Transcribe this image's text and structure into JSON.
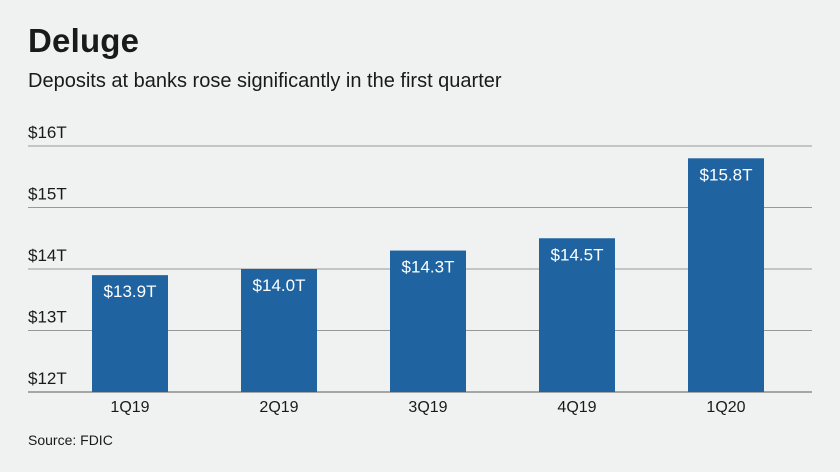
{
  "header": {
    "title": "Deluge",
    "subtitle": "Deposits at banks rose significantly in the first quarter"
  },
  "footer": {
    "source": "Source: FDIC"
  },
  "colors": {
    "bar": "#1f64a0",
    "grid": "#7a7a7a",
    "background": "#f0f2f2",
    "label_inside": "#ffffff"
  },
  "chart_data": {
    "type": "bar",
    "categories": [
      "1Q19",
      "2Q19",
      "3Q19",
      "4Q19",
      "1Q20"
    ],
    "values": [
      13.9,
      14.0,
      14.3,
      14.5,
      15.8
    ],
    "value_labels": [
      "$13.9T",
      "$14.0T",
      "$14.3T",
      "$14.5T",
      "$15.8T"
    ],
    "ylim": [
      12,
      16
    ],
    "yticks": [
      12,
      13,
      14,
      15,
      16
    ],
    "ytick_labels": [
      "$12T",
      "$13T",
      "$14T",
      "$15T",
      "$16T"
    ],
    "grid": true
  }
}
